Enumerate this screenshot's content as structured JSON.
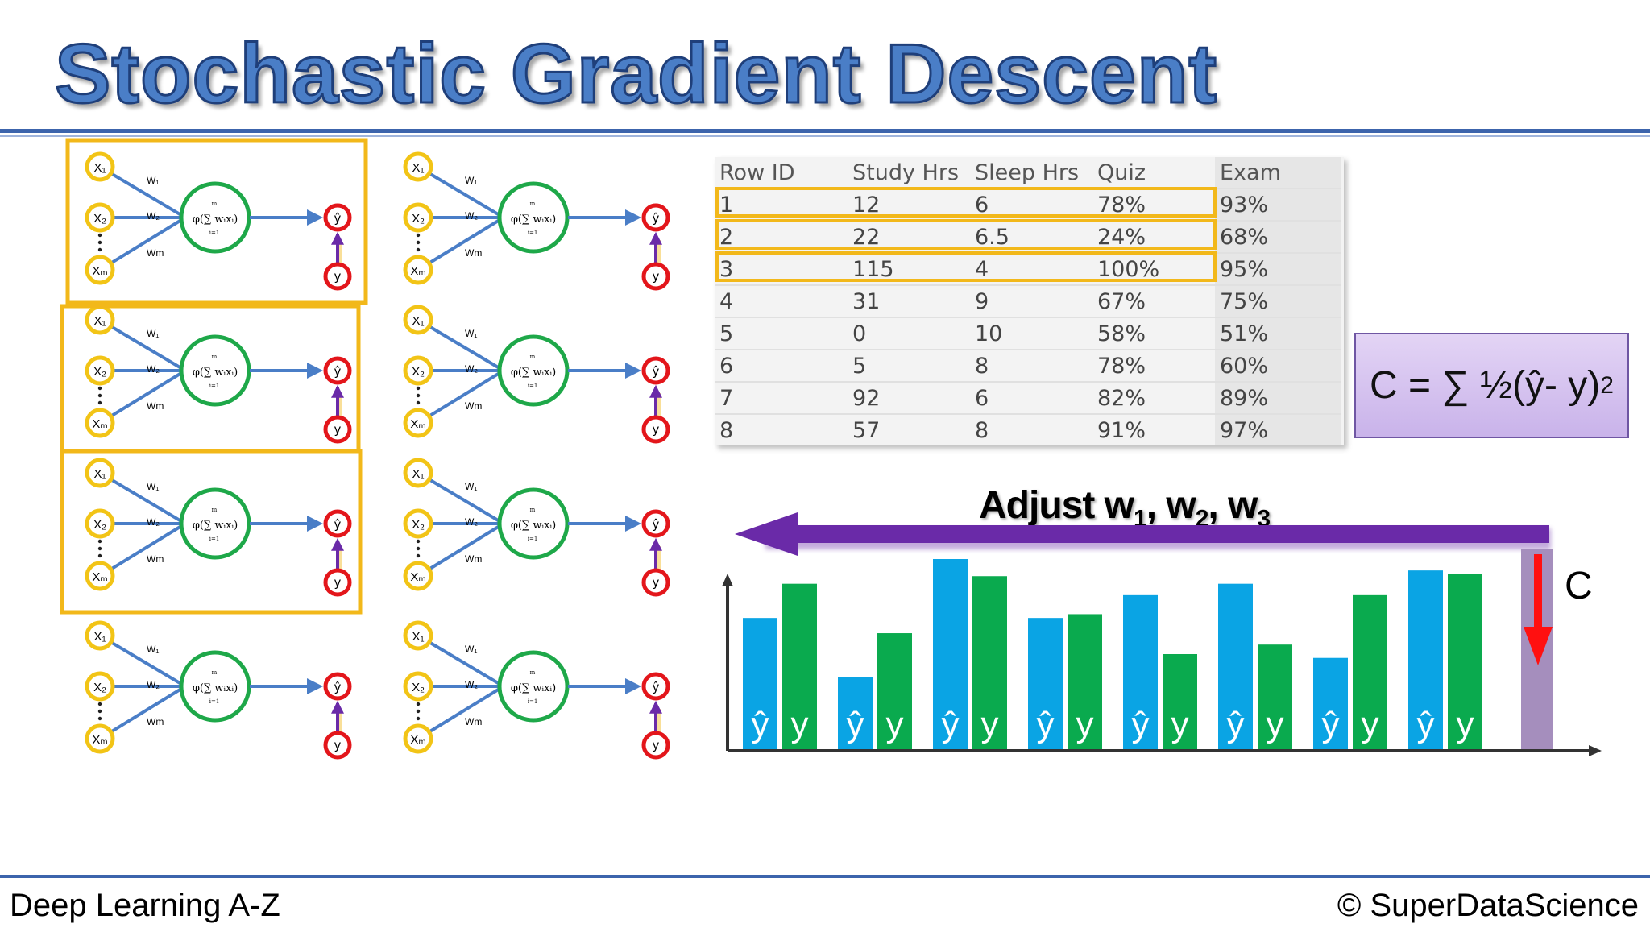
{
  "title": "Stochastic Gradient Descent",
  "footer": {
    "left": "Deep Learning A-Z",
    "right": "© SuperDataScience"
  },
  "network": {
    "inputs": [
      "X₁",
      "X₂",
      "Xₘ"
    ],
    "weights": [
      "W₁",
      "W₂",
      "Wm"
    ],
    "function": "φ(∑ wᵢxᵢ)",
    "sum_top": "m",
    "sum_bottom": "i=1",
    "output": "ŷ",
    "actual": "y",
    "count": 8,
    "highlighted_left_column": [
      1,
      2,
      3
    ]
  },
  "table": {
    "headers": [
      "Row ID",
      "Study Hrs",
      "Sleep Hrs",
      "Quiz",
      "Exam"
    ],
    "rows": [
      [
        "1",
        "12",
        "6",
        "78%",
        "93%"
      ],
      [
        "2",
        "22",
        "6.5",
        "24%",
        "68%"
      ],
      [
        "3",
        "115",
        "4",
        "100%",
        "95%"
      ],
      [
        "4",
        "31",
        "9",
        "67%",
        "75%"
      ],
      [
        "5",
        "0",
        "10",
        "58%",
        "51%"
      ],
      [
        "6",
        "5",
        "8",
        "78%",
        "60%"
      ],
      [
        "7",
        "92",
        "6",
        "82%",
        "89%"
      ],
      [
        "8",
        "57",
        "8",
        "91%",
        "97%"
      ]
    ],
    "highlighted_rows": [
      1,
      2,
      3
    ]
  },
  "cost_formula": {
    "text": "C = ∑ ½(ŷ- y)",
    "exponent": "2"
  },
  "adjust": {
    "text": "Adjust w",
    "subs": [
      "1",
      "2",
      "3"
    ]
  },
  "cost_label": "C",
  "bars": {
    "yhat_label": "ŷ",
    "y_label": "y",
    "yhat_color": "#0aa4e4",
    "y_color": "#0aaa4e",
    "cost_bar_color": "#a58ebd",
    "pairs": [
      {
        "yhat": 0.69,
        "y": 0.87
      },
      {
        "yhat": 0.38,
        "y": 0.61
      },
      {
        "yhat": 1.0,
        "y": 0.91
      },
      {
        "yhat": 0.69,
        "y": 0.71
      },
      {
        "yhat": 0.81,
        "y": 0.5
      },
      {
        "yhat": 0.87,
        "y": 0.55
      },
      {
        "yhat": 0.48,
        "y": 0.81
      },
      {
        "yhat": 0.94,
        "y": 0.92
      }
    ],
    "cost_bar": 1.0
  },
  "colors": {
    "title_fill": "#4a7ec7",
    "rule": "#3c64ac",
    "highlight": "#f2b81a",
    "input_node": "#f2c416",
    "neuron": "#1ea849",
    "output_node": "#e3161b",
    "arrow_purple": "#6a2aa8",
    "arrow_red": "#ff1010"
  }
}
